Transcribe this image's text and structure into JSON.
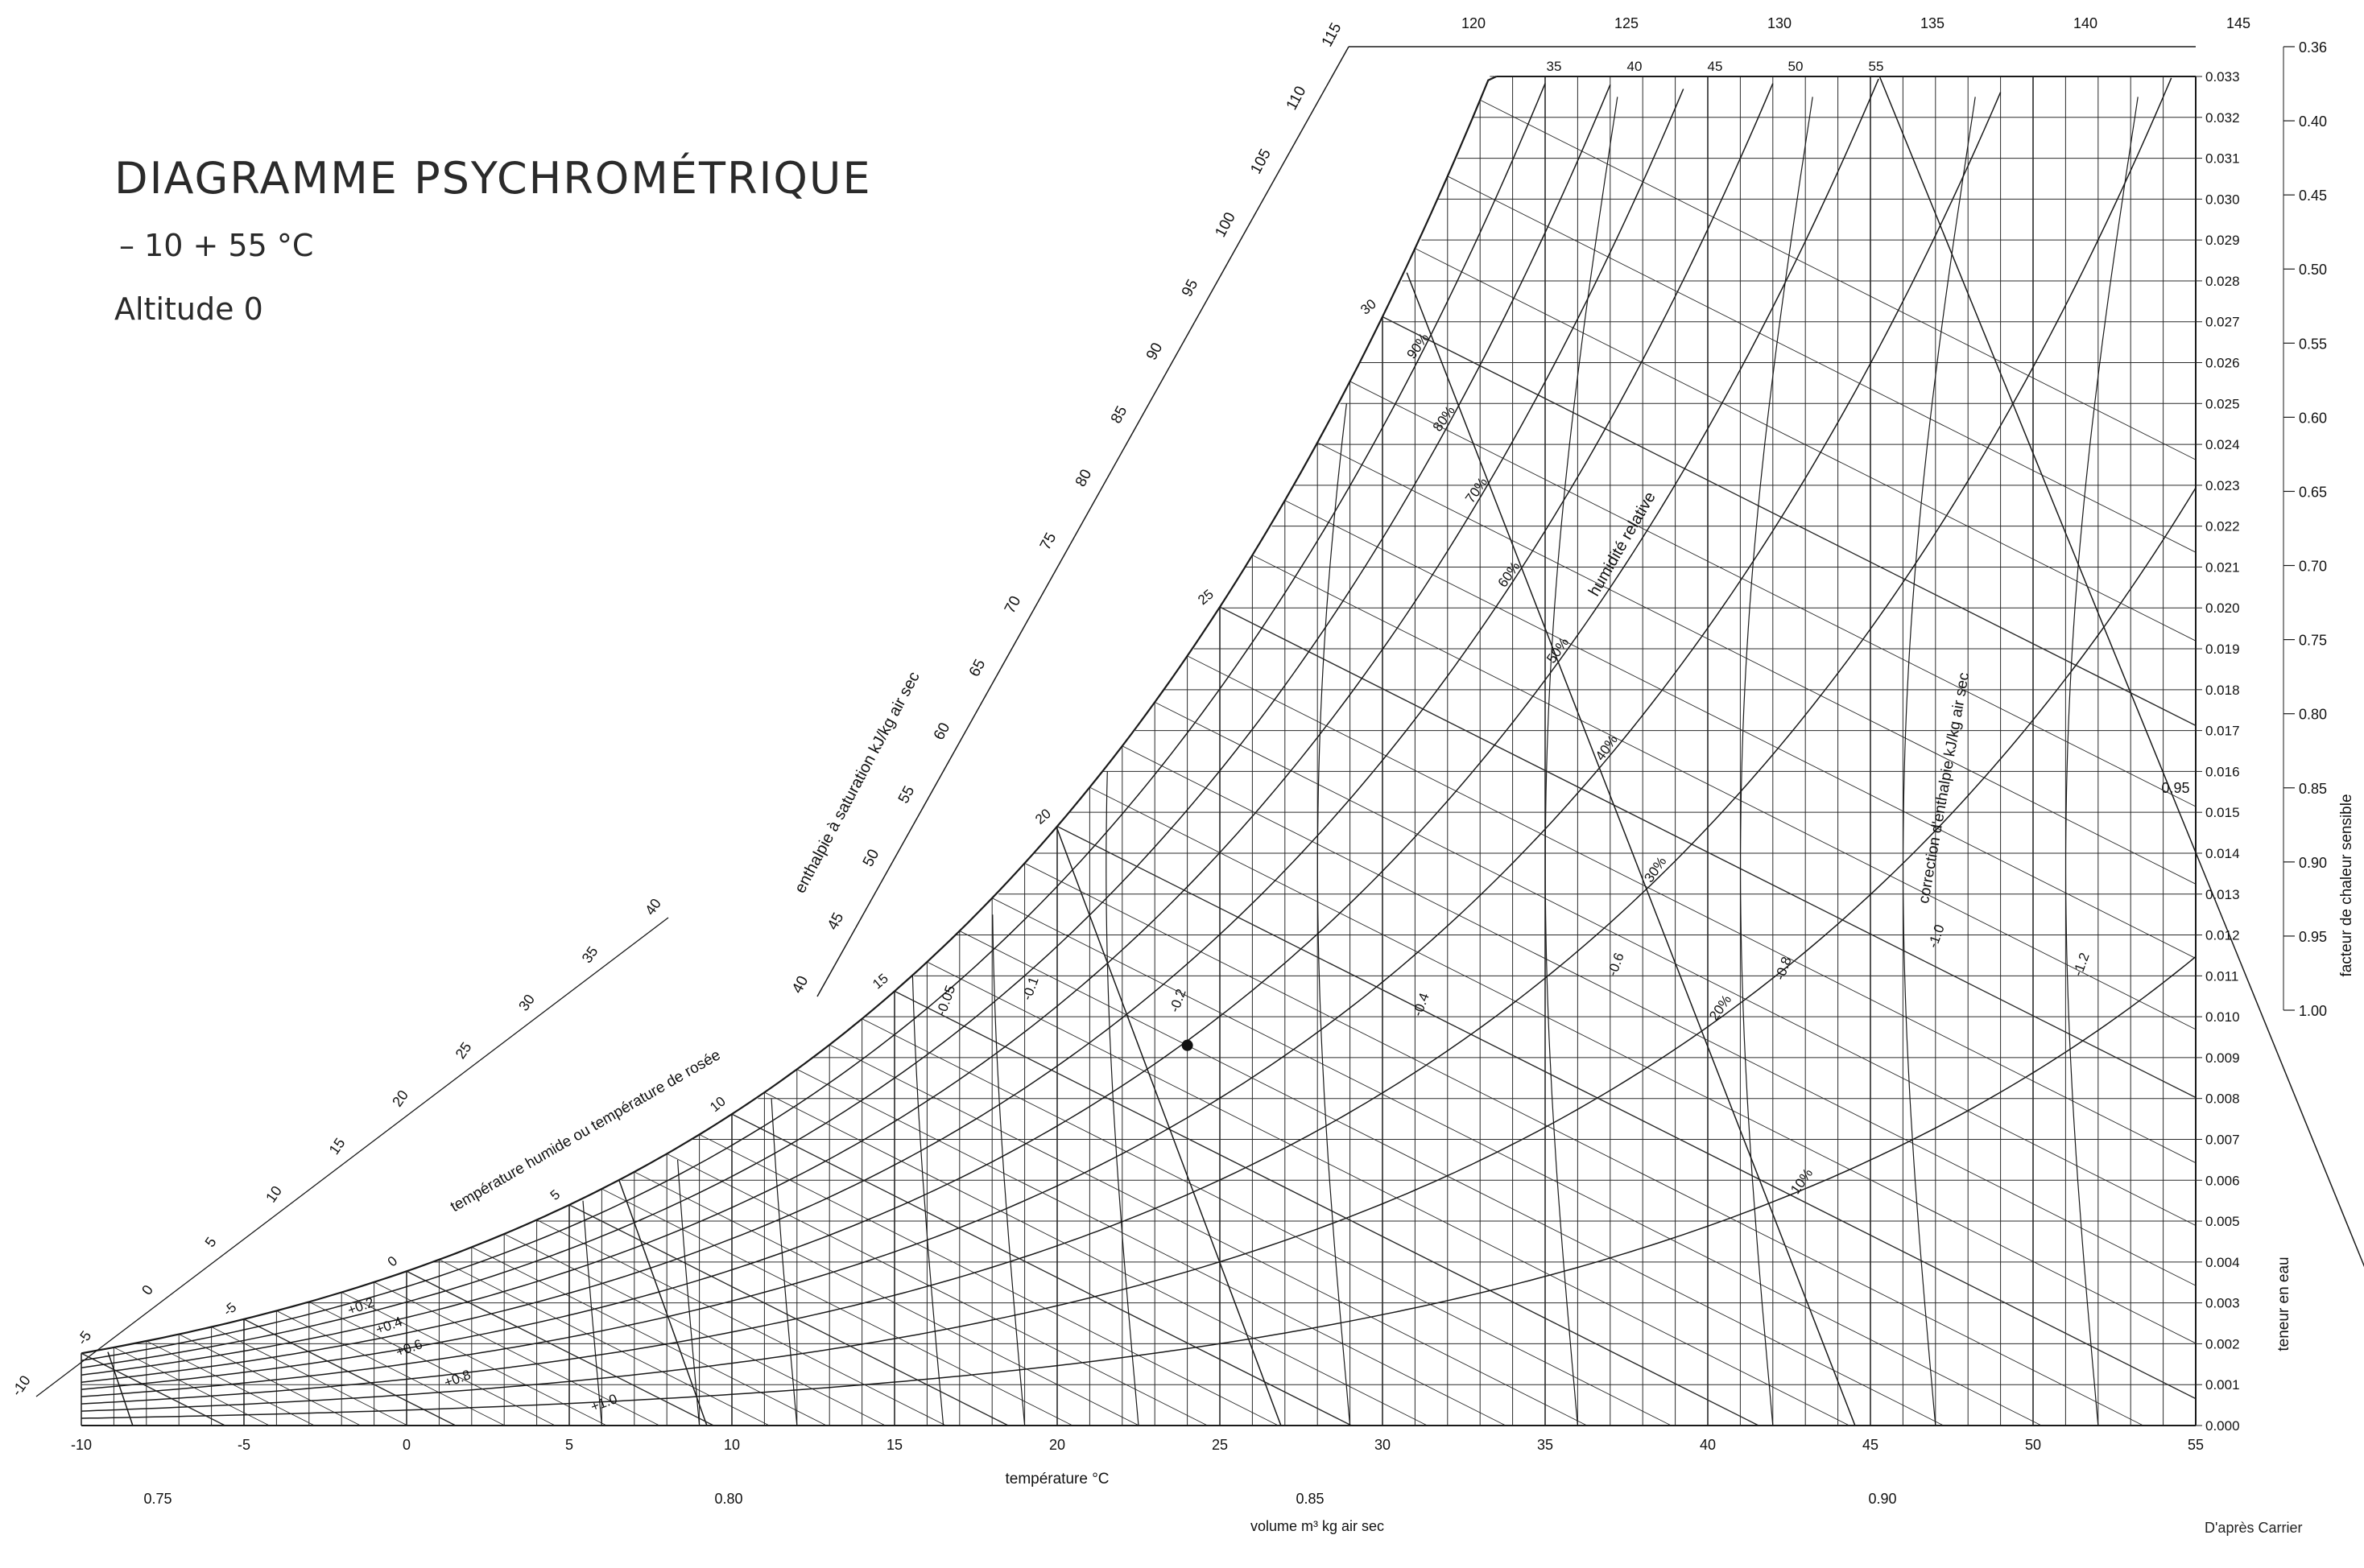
{
  "title": "DIAGRAMME PSYCHROMÉTRIQUE",
  "subtitle": "– 10  + 55 °C",
  "altitude": "Altitude 0",
  "credit": "D'après Carrier",
  "chart_data": {
    "type": "psychrometric",
    "x_axis": {
      "label": "température °C",
      "range": [
        -10,
        55
      ],
      "ticks": [
        "-10",
        "-5",
        "0",
        "5",
        "10",
        "15",
        "20",
        "25",
        "30",
        "35",
        "40",
        "45",
        "50",
        "55"
      ]
    },
    "y_axis": {
      "label": "teneur en eau",
      "range": [
        0,
        0.033
      ],
      "ticks": [
        "0.000",
        "0.001",
        "0.002",
        "0.003",
        "0.004",
        "0.005",
        "0.006",
        "0.007",
        "0.008",
        "0.009",
        "0.010",
        "0.011",
        "0.012",
        "0.013",
        "0.014",
        "0.015",
        "0.016",
        "0.017",
        "0.018",
        "0.019",
        "0.020",
        "0.021",
        "0.022",
        "0.023",
        "0.024",
        "0.025",
        "0.026",
        "0.027",
        "0.028",
        "0.029",
        "0.030",
        "0.031",
        "0.032",
        "0.033"
      ]
    },
    "sensible_heat_factor": {
      "label": "facteur de chaleur sensible",
      "values": [
        "0.36",
        "0.40",
        "0.45",
        "0.50",
        "0.55",
        "0.60",
        "0.65",
        "0.70",
        "0.75",
        "0.80",
        "0.85",
        "0.90",
        "0.95",
        "1.00"
      ]
    },
    "enthalpy_scale": {
      "label": "enthalpie à saturation kJ/kg air sec",
      "ticks": [
        "40",
        "45",
        "50",
        "55",
        "60",
        "65",
        "70",
        "75",
        "80",
        "85",
        "90",
        "95",
        "100",
        "105",
        "110",
        "115",
        "120",
        "125",
        "130",
        "135",
        "140",
        "145"
      ]
    },
    "low_enthalpy_scale": {
      "ticks": [
        "-10",
        "-5",
        "0",
        "5",
        "10",
        "15",
        "20",
        "25",
        "30",
        "35",
        "40"
      ]
    },
    "wet_bulb": {
      "label": "température humide ou température de rosée",
      "values": [
        "-5",
        "0",
        "5",
        "10",
        "15",
        "20",
        "25",
        "30",
        "35",
        "40",
        "45",
        "50",
        "55"
      ]
    },
    "relative_humidity": {
      "label": "humidité relative",
      "curves": [
        "10%",
        "20%",
        "30%",
        "40%",
        "50%",
        "60%",
        "70%",
        "80%",
        "90%"
      ]
    },
    "enthalpy_correction": {
      "label": "correction d'enthalpie kJ/kg air sec",
      "values": [
        "+1.0",
        "+0.8",
        "+0.6",
        "+0.4",
        "+0.2",
        "-0.05",
        "-0.1",
        "-0.2",
        "-0.4",
        "-0.6",
        "-0.8",
        "-1.0",
        "-1.2"
      ]
    },
    "specific_volume": {
      "label": "volume m³ kg air sec",
      "values": [
        "0.75",
        "0.80",
        "0.85",
        "0.90",
        "0.95"
      ]
    },
    "marked_point": {
      "t": 24,
      "w": 0.0093
    }
  }
}
